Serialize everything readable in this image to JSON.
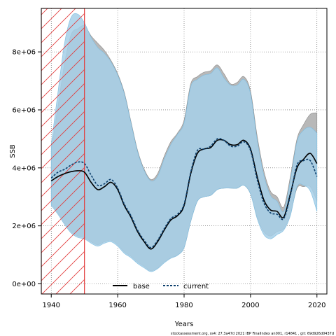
{
  "chart_data": {
    "type": "area",
    "xlabel": "Years",
    "ylabel": "SSB",
    "xlim": [
      1937,
      2023
    ],
    "ylim": [
      -350000,
      9500000
    ],
    "x_ticks": [
      1940,
      1960,
      1980,
      2000,
      2020
    ],
    "x_tick_labels": [
      "1940",
      "1960",
      "1980",
      "2000",
      "2020"
    ],
    "y_ticks": [
      0,
      2000000,
      4000000,
      6000000,
      8000000
    ],
    "y_tick_labels": [
      "0e+00",
      "2e+06",
      "4e+06",
      "6e+06",
      "8e+06"
    ],
    "grid": true,
    "legend_position": "bottom",
    "shaded_period": [
      1937,
      1950
    ],
    "colors": {
      "base_band": "#b8b8b8",
      "current_band": "#a6cfe8",
      "base_line": "#000000",
      "current_line": "#0a3d6b",
      "shaded_period": "#e23b3b"
    },
    "x": [
      1940,
      1942,
      1944,
      1946,
      1948,
      1950,
      1952,
      1954,
      1956,
      1958,
      1960,
      1962,
      1964,
      1966,
      1968,
      1970,
      1972,
      1974,
      1976,
      1978,
      1980,
      1982,
      1984,
      1986,
      1988,
      1990,
      1992,
      1994,
      1996,
      1998,
      2000,
      2002,
      2004,
      2006,
      2008,
      2010,
      2012,
      2014,
      2016,
      2018,
      2020
    ],
    "series": [
      {
        "name": "base",
        "style": "solid",
        "values": [
          3550000,
          3700000,
          3800000,
          3870000,
          3900000,
          3850000,
          3500000,
          3250000,
          3350000,
          3500000,
          3250000,
          2700000,
          2300000,
          1800000,
          1450000,
          1200000,
          1450000,
          1850000,
          2200000,
          2350000,
          2700000,
          3800000,
          4500000,
          4650000,
          4700000,
          4950000,
          4950000,
          4800000,
          4800000,
          4950000,
          4650000,
          3700000,
          2900000,
          2550000,
          2500000,
          2300000,
          3100000,
          4000000,
          4300000,
          4500000,
          4150000
        ],
        "band_lower": [
          2750000,
          2450000,
          2100000,
          1800000,
          1650000,
          1600000,
          1450000,
          1350000,
          1450000,
          1500000,
          1350000,
          1100000,
          950000,
          750000,
          600000,
          450000,
          550000,
          750000,
          900000,
          1000000,
          1250000,
          2150000,
          2850000,
          3000000,
          3050000,
          3250000,
          3300000,
          3300000,
          3300000,
          3400000,
          3100000,
          2300000,
          1800000,
          1650000,
          1800000,
          1900000,
          2400000,
          3300000,
          3350000,
          3350000,
          2850000
        ],
        "band_upper": [
          4600000,
          6100000,
          7600000,
          8600000,
          8800000,
          8900000,
          8550000,
          8300000,
          8050000,
          7700000,
          7250000,
          6600000,
          5600000,
          4600000,
          3950000,
          3600000,
          3800000,
          4400000,
          4900000,
          5200000,
          5650000,
          6900000,
          7150000,
          7300000,
          7350000,
          7550000,
          7250000,
          6900000,
          6950000,
          7150000,
          6650000,
          5100000,
          3900000,
          3200000,
          3000000,
          2650000,
          3700000,
          5000000,
          5500000,
          5850000,
          5900000
        ]
      },
      {
        "name": "current",
        "style": "dashed",
        "values": [
          3650000,
          3850000,
          3950000,
          4100000,
          4200000,
          4150000,
          3750000,
          3400000,
          3450000,
          3600000,
          3300000,
          2750000,
          2350000,
          1850000,
          1500000,
          1250000,
          1500000,
          1900000,
          2250000,
          2400000,
          2750000,
          3850000,
          4600000,
          4650000,
          4750000,
          5000000,
          4950000,
          4750000,
          4750000,
          4900000,
          4600000,
          3600000,
          2800000,
          2450000,
          2400000,
          2250000,
          3050000,
          4100000,
          4250000,
          4250000,
          3700000
        ],
        "band_lower": [
          2700000,
          2400000,
          2050000,
          1750000,
          1600000,
          1550000,
          1400000,
          1300000,
          1400000,
          1450000,
          1300000,
          1050000,
          900000,
          700000,
          550000,
          420000,
          520000,
          720000,
          880000,
          980000,
          1250000,
          2150000,
          2850000,
          3000000,
          3050000,
          3250000,
          3300000,
          3300000,
          3300000,
          3400000,
          3100000,
          2250000,
          1700000,
          1550000,
          1700000,
          1850000,
          2350000,
          3350000,
          3400000,
          3200000,
          2500000
        ],
        "band_upper": [
          4800000,
          6600000,
          8300000,
          9200000,
          9300000,
          9000000,
          8500000,
          8150000,
          7950000,
          7650000,
          7200000,
          6550000,
          5550000,
          4550000,
          3900000,
          3550000,
          3700000,
          4300000,
          4800000,
          5150000,
          5550000,
          6800000,
          7050000,
          7200000,
          7250000,
          7450000,
          7100000,
          6850000,
          6850000,
          7050000,
          6550000,
          4950000,
          3750000,
          3050000,
          2850000,
          2500000,
          3550000,
          4900000,
          5300000,
          5400000,
          5200000
        ]
      }
    ]
  },
  "footer": {
    "caption": "stockassessment.org, ss4: 27.3a47d 2021 IBP FinalIndex an001, r14841 , git: 69d926d0437d"
  }
}
